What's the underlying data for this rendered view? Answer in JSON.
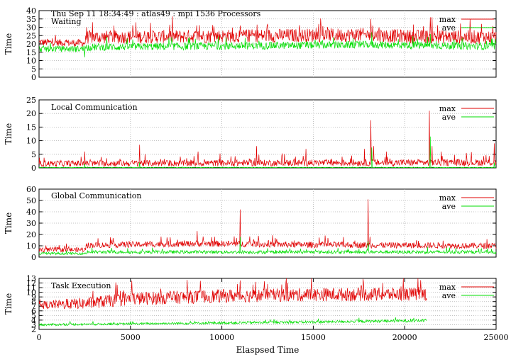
{
  "chart_data": [
    {
      "type": "line",
      "title": "Thu Sep 11 18:34:49 : atlas49 : mpi 1536 Processors",
      "label": "Waiting",
      "ylabel": "Time",
      "xlabel": "",
      "ylim": [
        0,
        40
      ],
      "yticks": [
        0,
        5,
        10,
        15,
        20,
        25,
        30,
        35,
        40
      ],
      "xlim": [
        0,
        25000
      ],
      "grid": true,
      "legend": "top-right",
      "series": [
        {
          "name": "max",
          "color": "#e00000",
          "x_end": 25000,
          "profile": [
            [
              0,
              21,
              1.4
            ],
            [
              2500,
              20.5,
              1.4
            ],
            [
              2600,
              24,
              2.5
            ],
            [
              18000,
              25.5,
              2.6
            ],
            [
              20000,
              24.5,
              2.6
            ],
            [
              25000,
              24,
              2.6
            ]
          ],
          "spikes": [
            [
              2600,
              30
            ],
            [
              5300,
              33
            ],
            [
              11000,
              31
            ],
            [
              15300,
              32
            ],
            [
              18150,
              35
            ],
            [
              18250,
              31
            ],
            [
              18600,
              30
            ],
            [
              21400,
              36
            ],
            [
              21500,
              36
            ],
            [
              24200,
              32
            ]
          ]
        },
        {
          "name": "ave",
          "color": "#00dd00",
          "x_end": 25000,
          "profile": [
            [
              0,
              17,
              1.2
            ],
            [
              2500,
              17,
              1.2
            ],
            [
              2600,
              18,
              1.4
            ],
            [
              18000,
              19.5,
              1.4
            ],
            [
              25000,
              18.5,
              1.4
            ]
          ],
          "spikes": [
            [
              2500,
              12
            ],
            [
              18200,
              27
            ],
            [
              21400,
              26
            ]
          ]
        }
      ]
    },
    {
      "type": "line",
      "label": "Local Communication",
      "ylabel": "Time",
      "xlabel": "",
      "ylim": [
        0,
        25
      ],
      "yticks": [
        0,
        5,
        10,
        15,
        20,
        25
      ],
      "xlim": [
        0,
        25000
      ],
      "grid": true,
      "legend": "top-right",
      "series": [
        {
          "name": "max",
          "color": "#e00000",
          "x_end": 25000,
          "profile": [
            [
              0,
              1.6,
              0.7
            ],
            [
              25000,
              2.0,
              0.8
            ]
          ],
          "spikes": [
            [
              2500,
              6
            ],
            [
              5500,
              8.5
            ],
            [
              8700,
              6
            ],
            [
              11900,
              8
            ],
            [
              14600,
              7
            ],
            [
              17800,
              7
            ],
            [
              18150,
              17.5
            ],
            [
              18300,
              8
            ],
            [
              19000,
              6
            ],
            [
              21350,
              21
            ],
            [
              21500,
              8
            ],
            [
              22000,
              6
            ],
            [
              24900,
              9
            ]
          ]
        },
        {
          "name": "ave",
          "color": "#00dd00",
          "x_end": 25000,
          "profile": [
            [
              0,
              0.15,
              0.05
            ],
            [
              25000,
              0.15,
              0.05
            ]
          ],
          "spikes": [
            [
              2500,
              1.5
            ],
            [
              5500,
              2
            ],
            [
              18200,
              7.5
            ],
            [
              21400,
              11.5
            ],
            [
              24900,
              2
            ]
          ]
        }
      ]
    },
    {
      "type": "line",
      "label": "Global Communication",
      "ylabel": "Time",
      "xlabel": "",
      "ylim": [
        0,
        60
      ],
      "yticks": [
        0,
        10,
        20,
        30,
        40,
        50,
        60
      ],
      "xlim": [
        0,
        25000
      ],
      "grid": true,
      "legend": "top-right",
      "series": [
        {
          "name": "max",
          "color": "#e00000",
          "x_end": 25000,
          "profile": [
            [
              0,
              6.5,
              1.3
            ],
            [
              2500,
              6.5,
              1.3
            ],
            [
              2700,
              10.5,
              1.6
            ],
            [
              9000,
              12,
              1.7
            ],
            [
              14000,
              11,
              1.7
            ],
            [
              25000,
              10,
              1.6
            ]
          ],
          "spikes": [
            [
              8650,
              23
            ],
            [
              11000,
              42
            ],
            [
              13000,
              16
            ],
            [
              18000,
              51
            ],
            [
              18100,
              18
            ]
          ]
        },
        {
          "name": "ave",
          "color": "#00dd00",
          "x_end": 25000,
          "profile": [
            [
              0,
              3.2,
              0.7
            ],
            [
              2500,
              3.2,
              0.7
            ],
            [
              2700,
              4.5,
              0.9
            ],
            [
              25000,
              4.5,
              0.9
            ]
          ],
          "spikes": [
            [
              11000,
              18
            ],
            [
              18000,
              14
            ]
          ]
        }
      ]
    },
    {
      "type": "line",
      "label": "Task Execution",
      "ylabel": "Time",
      "xlabel": "Elaspsed Time",
      "ylim": [
        2,
        13
      ],
      "yticks": [
        2,
        3,
        4,
        5,
        6,
        7,
        8,
        9,
        10,
        11,
        12,
        13
      ],
      "xlim": [
        0,
        25000
      ],
      "xticks": [
        0,
        5000,
        10000,
        15000,
        20000,
        25000
      ],
      "grid": true,
      "legend": "top-right",
      "series": [
        {
          "name": "max",
          "color": "#e00000",
          "x_end": 21200,
          "profile": [
            [
              0,
              7.2,
              0.5
            ],
            [
              2500,
              7.6,
              0.8
            ],
            [
              5000,
              8.6,
              0.9
            ],
            [
              10000,
              9.2,
              0.9
            ],
            [
              15000,
              9.5,
              0.9
            ],
            [
              21200,
              9.6,
              0.9
            ]
          ],
          "spikes": [
            [
              12500,
              11.8
            ],
            [
              13500,
              12.1
            ],
            [
              18800,
              12
            ]
          ]
        },
        {
          "name": "ave",
          "color": "#00dd00",
          "x_end": 21200,
          "profile": [
            [
              0,
              3.0,
              0.15
            ],
            [
              5000,
              3.2,
              0.15
            ],
            [
              15000,
              3.6,
              0.18
            ],
            [
              21200,
              3.9,
              0.2
            ]
          ],
          "spikes": [
            [
              17500,
              4.5
            ],
            [
              19500,
              4.6
            ]
          ]
        }
      ]
    }
  ]
}
